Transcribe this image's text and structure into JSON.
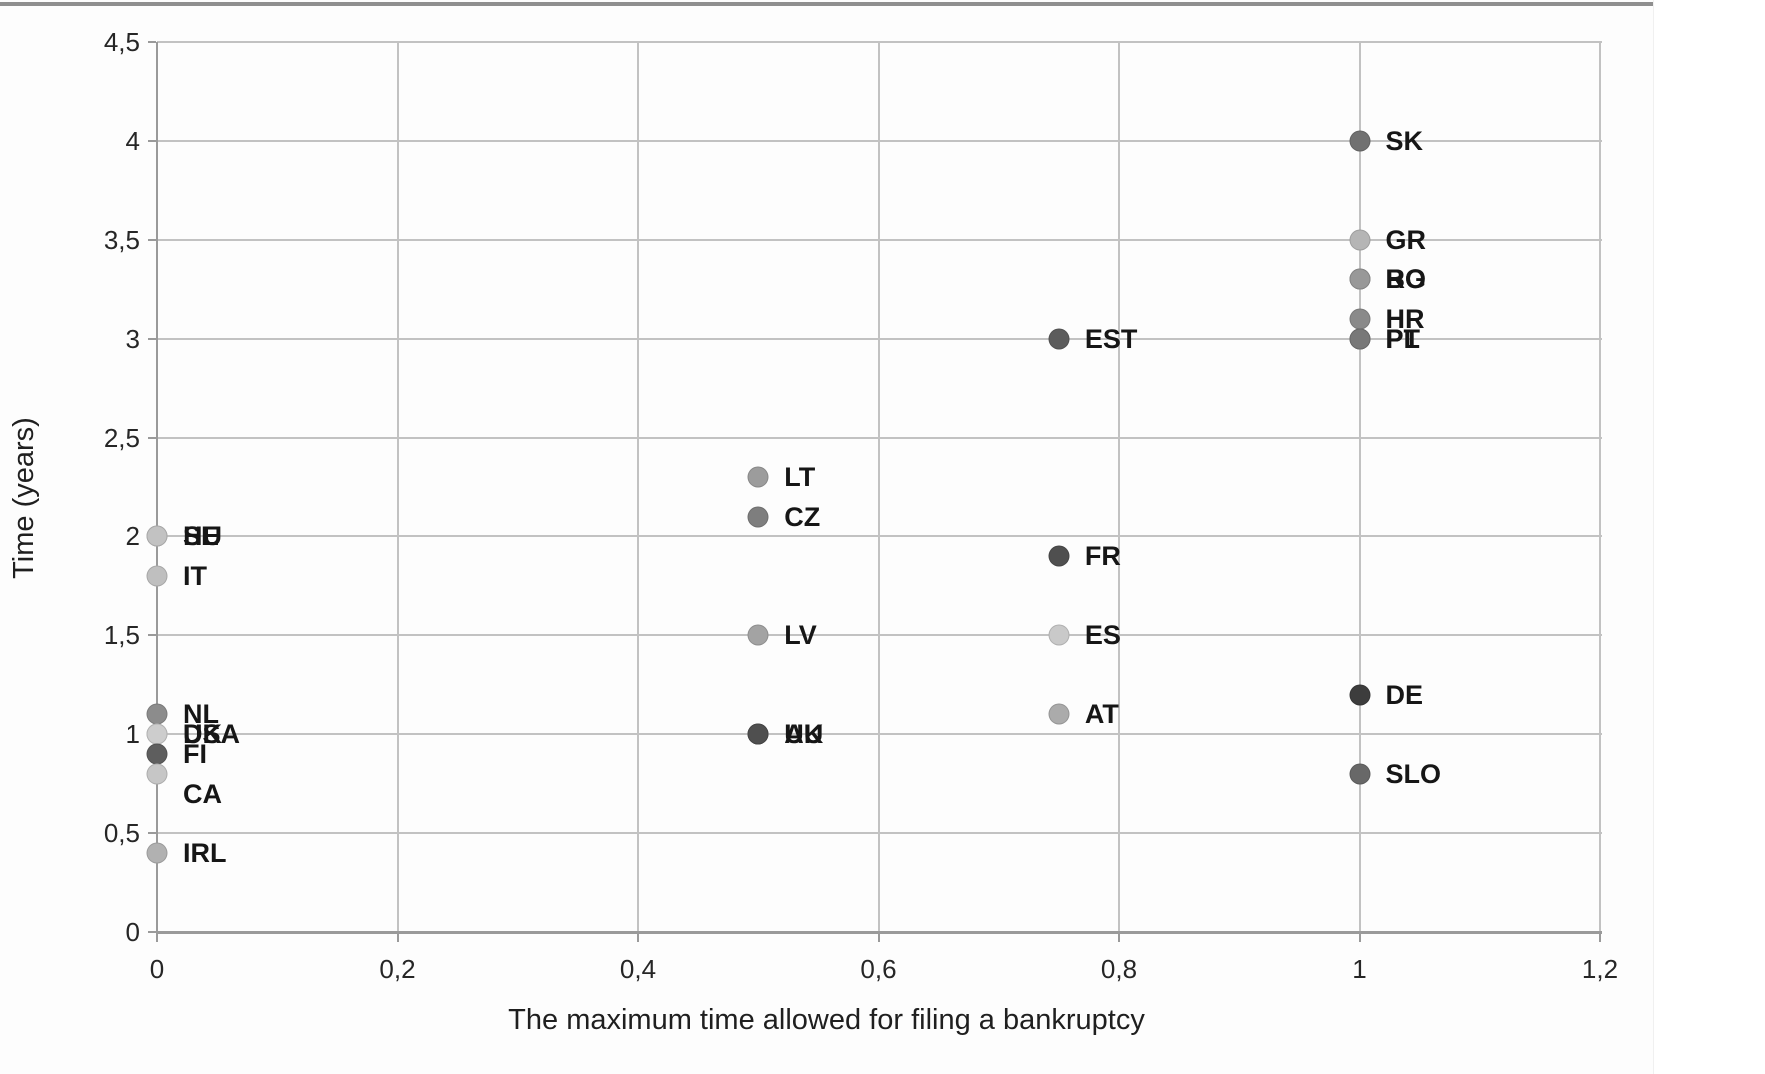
{
  "page": {
    "background": "#fdfdfd",
    "top_border_color": "#8f8f8f"
  },
  "chart_data": {
    "type": "scatter",
    "title": "",
    "xlabel": "The maximum time allowed for filing a bankruptcy",
    "ylabel": "Time (years)",
    "xlim": [
      0,
      1.2
    ],
    "ylim": [
      0,
      4.5
    ],
    "grid": true,
    "legend": "none",
    "decimal_separator": ",",
    "xticks": [
      {
        "value": 0,
        "label": "0"
      },
      {
        "value": 0.2,
        "label": "0,2"
      },
      {
        "value": 0.4,
        "label": "0,4"
      },
      {
        "value": 0.6,
        "label": "0,6"
      },
      {
        "value": 0.8,
        "label": "0,8"
      },
      {
        "value": 1,
        "label": "1"
      },
      {
        "value": 1.2,
        "label": "1,2"
      }
    ],
    "yticks": [
      {
        "value": 0,
        "label": "0"
      },
      {
        "value": 0.5,
        "label": "0,5"
      },
      {
        "value": 1,
        "label": "1"
      },
      {
        "value": 1.5,
        "label": "1,5"
      },
      {
        "value": 2,
        "label": "2"
      },
      {
        "value": 2.5,
        "label": "2,5"
      },
      {
        "value": 3,
        "label": "3"
      },
      {
        "value": 3.5,
        "label": "3,5"
      },
      {
        "value": 4,
        "label": "4"
      },
      {
        "value": 4.5,
        "label": "4,5"
      }
    ],
    "points": [
      {
        "code": "SK",
        "x": 1,
        "y": 4,
        "color": "#717171"
      },
      {
        "code": "GR",
        "x": 1,
        "y": 3.5,
        "color": "#b5b5b5"
      },
      {
        "code": "RO",
        "x": 1,
        "y": 3.3,
        "color": "#8f8f8f"
      },
      {
        "code": "BG",
        "x": 1,
        "y": 3.3,
        "color": "#989898"
      },
      {
        "code": "HR",
        "x": 1,
        "y": 3.1,
        "color": "#8a8a8a"
      },
      {
        "code": "PT",
        "x": 1,
        "y": 3,
        "color": "#6f6f6f"
      },
      {
        "code": "PL",
        "x": 1,
        "y": 3,
        "color": "#787878"
      },
      {
        "code": "EST",
        "x": 0.75,
        "y": 3,
        "color": "#5c5c5c"
      },
      {
        "code": "LT",
        "x": 0.5,
        "y": 2.3,
        "color": "#9c9c9c"
      },
      {
        "code": "CZ",
        "x": 0.5,
        "y": 2.1,
        "color": "#7e7e7e"
      },
      {
        "code": "HU",
        "x": 0,
        "y": 2,
        "color": "#bcbcbc"
      },
      {
        "code": "SE",
        "x": 0,
        "y": 2,
        "color": "#c2c2c2"
      },
      {
        "code": "FR",
        "x": 0.75,
        "y": 1.9,
        "color": "#4f4f4f"
      },
      {
        "code": "IT",
        "x": 0,
        "y": 1.8,
        "color": "#bfbfbf"
      },
      {
        "code": "LV",
        "x": 0.5,
        "y": 1.5,
        "color": "#a3a3a3"
      },
      {
        "code": "ES",
        "x": 0.75,
        "y": 1.5,
        "color": "#c9c9c9"
      },
      {
        "code": "DE",
        "x": 1,
        "y": 1.2,
        "color": "#3d3d3d"
      },
      {
        "code": "NL",
        "x": 0,
        "y": 1.1,
        "color": "#8c8c8c"
      },
      {
        "code": "AT",
        "x": 0.75,
        "y": 1.1,
        "color": "#ababab"
      },
      {
        "code": "USA",
        "x": 0,
        "y": 1,
        "color": "#c4c4c4"
      },
      {
        "code": "DK",
        "x": 0,
        "y": 1,
        "color": "#cdcdcd"
      },
      {
        "code": "AU",
        "x": 0.5,
        "y": 1,
        "color": "#575757"
      },
      {
        "code": "UK",
        "x": 0.5,
        "y": 1,
        "color": "#4f4f4f"
      },
      {
        "code": "FI",
        "x": 0,
        "y": 0.9,
        "color": "#5e5e5e"
      },
      {
        "code": "SLO",
        "x": 1,
        "y": 0.8,
        "color": "#686868"
      },
      {
        "code": "CA",
        "x": 0,
        "y": 0.8,
        "color": "#c6c6c6",
        "label_dy": 20
      },
      {
        "code": "IRL",
        "x": 0,
        "y": 0.4,
        "color": "#b1b1b1"
      }
    ]
  }
}
